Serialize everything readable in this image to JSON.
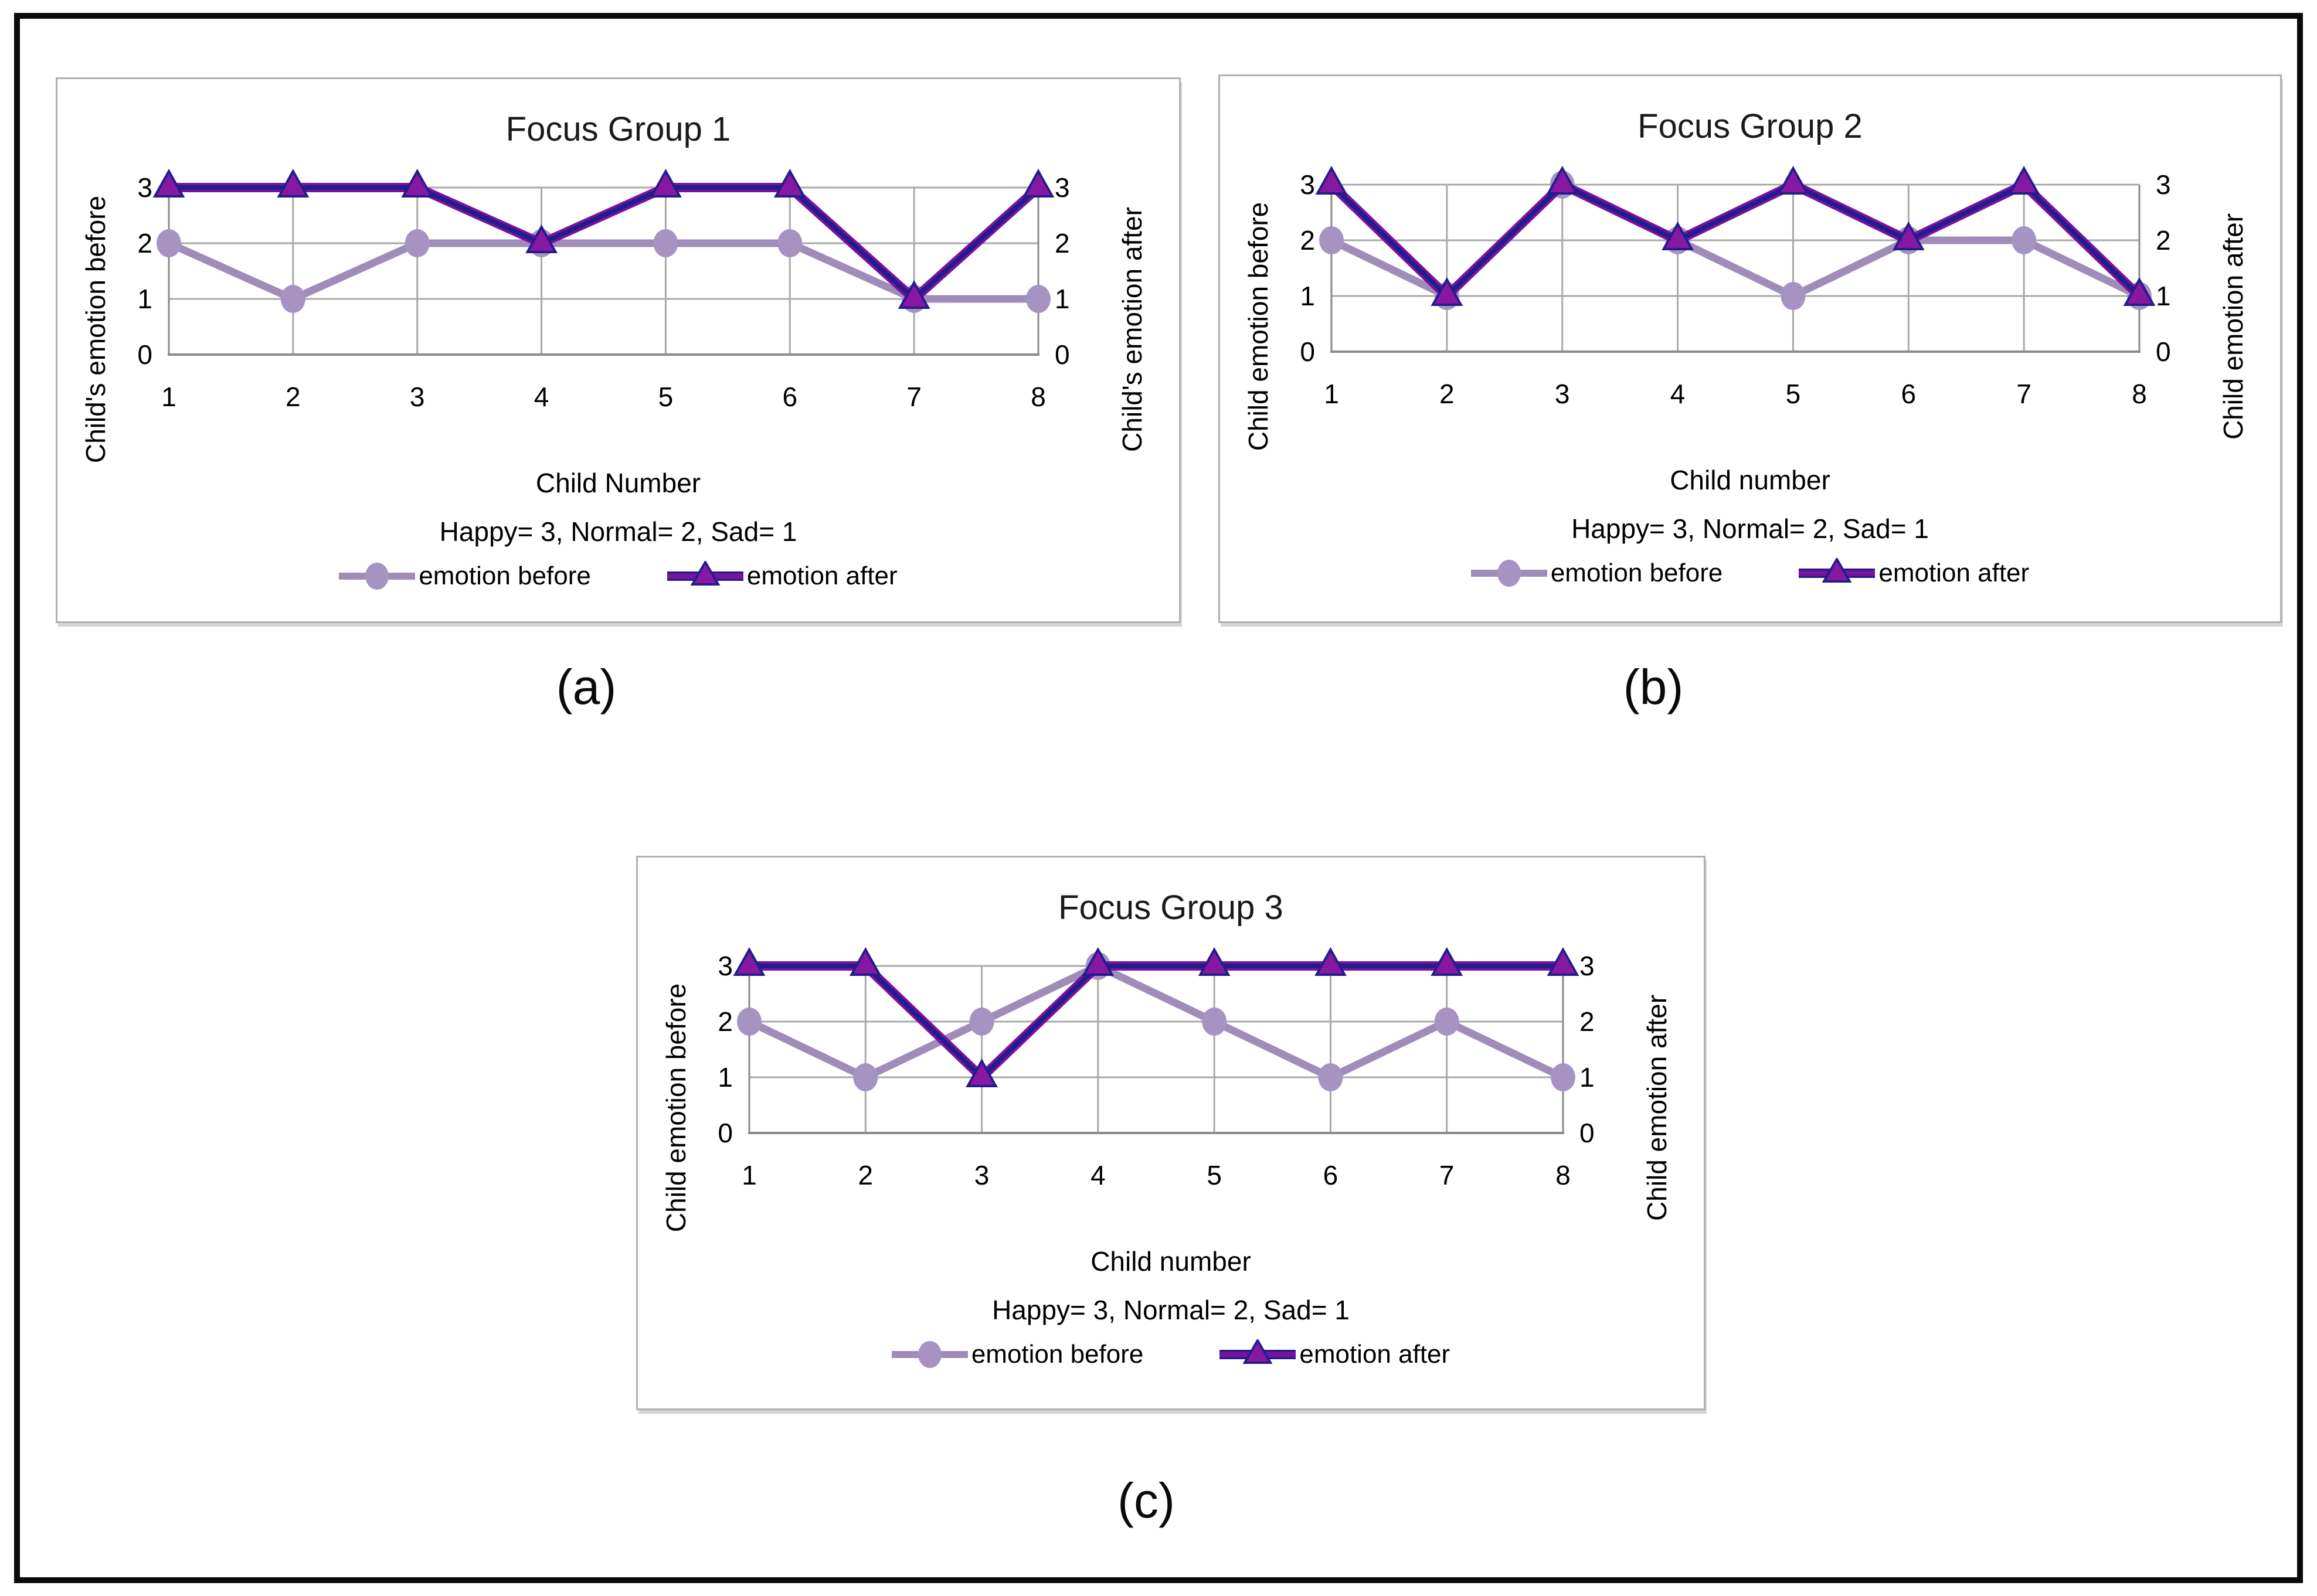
{
  "figure": {
    "captions": [
      "(a)",
      "(b)",
      "(c)"
    ],
    "colors": {
      "before_line": "#a08cb8",
      "before_marker": "#a793c2",
      "after_line": "#241c8c",
      "after_edge": "#7a12a0",
      "after_marker": "#8618a2",
      "grid": "#a9a9a9",
      "axis": "#8a8a8a",
      "panel_border": "#b0b0b0",
      "figure_border": "#0a0a0a",
      "text": "#000000"
    }
  },
  "chart_data": [
    {
      "type": "line",
      "title": "Focus Group 1",
      "xlabel": "Child Number",
      "subtitle": "Happy= 3, Normal= 2, Sad= 1",
      "ylabel_left": "Child's emotion before",
      "ylabel_right": "Child's emotion after",
      "categories": [
        1,
        2,
        3,
        4,
        5,
        6,
        7,
        8
      ],
      "ylim": [
        0,
        3
      ],
      "yticks": [
        0,
        1,
        2,
        3
      ],
      "grid": true,
      "legend_position": "bottom",
      "series": [
        {
          "name": "emotion before",
          "marker": "circle",
          "values": [
            2,
            1,
            2,
            2,
            2,
            2,
            1,
            1
          ]
        },
        {
          "name": "emotion after",
          "marker": "triangle",
          "values": [
            3,
            3,
            3,
            2,
            3,
            3,
            1,
            3
          ]
        }
      ]
    },
    {
      "type": "line",
      "title": "Focus Group 2",
      "xlabel": "Child number",
      "subtitle": "Happy= 3, Normal= 2, Sad= 1",
      "ylabel_left": "Child emotion before",
      "ylabel_right": "Child emotion after",
      "categories": [
        1,
        2,
        3,
        4,
        5,
        6,
        7,
        8
      ],
      "ylim": [
        0,
        3
      ],
      "yticks": [
        0,
        1,
        2,
        3
      ],
      "grid": true,
      "legend_position": "bottom",
      "series": [
        {
          "name": "emotion before",
          "marker": "circle",
          "values": [
            2,
            1,
            3,
            2,
            1,
            2,
            2,
            1
          ]
        },
        {
          "name": "emotion after",
          "marker": "triangle",
          "values": [
            3,
            1,
            3,
            2,
            3,
            2,
            3,
            1
          ]
        }
      ]
    },
    {
      "type": "line",
      "title": "Focus Group 3",
      "xlabel": "Child number",
      "subtitle": "Happy= 3, Normal= 2, Sad= 1",
      "ylabel_left": "Child emotion before",
      "ylabel_right": "Child emotion after",
      "categories": [
        1,
        2,
        3,
        4,
        5,
        6,
        7,
        8
      ],
      "ylim": [
        0,
        3
      ],
      "yticks": [
        0,
        1,
        2,
        3
      ],
      "grid": true,
      "legend_position": "bottom",
      "series": [
        {
          "name": "emotion before",
          "marker": "circle",
          "values": [
            2,
            1,
            2,
            3,
            2,
            1,
            2,
            1
          ]
        },
        {
          "name": "emotion after",
          "marker": "triangle",
          "values": [
            3,
            3,
            1,
            3,
            3,
            3,
            3,
            3
          ]
        }
      ]
    }
  ]
}
